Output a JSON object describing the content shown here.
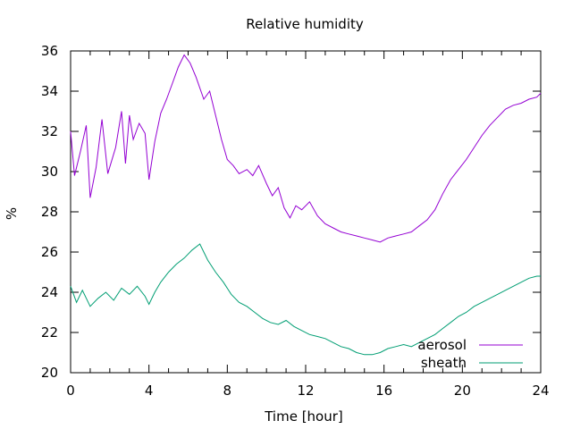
{
  "chart_data": {
    "type": "line",
    "title": "Relative humidity",
    "xlabel": "Time [hour]",
    "ylabel": "%",
    "xlim": [
      0,
      24
    ],
    "ylim": [
      20,
      36
    ],
    "xticks": [
      0,
      4,
      8,
      12,
      16,
      20,
      24
    ],
    "yticks": [
      20,
      22,
      24,
      26,
      28,
      30,
      32,
      34,
      36
    ],
    "grid": false,
    "legend_position": "bottom-right",
    "series": [
      {
        "name": "aerosol",
        "color": "#9400d3",
        "x": [
          0,
          0.2,
          0.5,
          0.8,
          1.0,
          1.3,
          1.6,
          1.9,
          2.3,
          2.6,
          2.8,
          3.0,
          3.2,
          3.5,
          3.8,
          4.0,
          4.3,
          4.6,
          4.9,
          5.2,
          5.5,
          5.8,
          6.1,
          6.4,
          6.8,
          7.1,
          7.4,
          7.7,
          8.0,
          8.3,
          8.6,
          9.0,
          9.3,
          9.6,
          10.0,
          10.3,
          10.6,
          10.9,
          11.2,
          11.5,
          11.8,
          12.2,
          12.6,
          13.0,
          13.4,
          13.8,
          14.2,
          14.6,
          15.0,
          15.4,
          15.8,
          16.2,
          16.6,
          17.0,
          17.4,
          17.8,
          18.2,
          18.6,
          19.0,
          19.4,
          19.8,
          20.2,
          20.6,
          21.0,
          21.4,
          21.8,
          22.2,
          22.6,
          23.0,
          23.4,
          23.8,
          24.0
        ],
        "y": [
          32.0,
          29.8,
          31.0,
          32.3,
          28.7,
          30.2,
          32.6,
          29.9,
          31.2,
          33.0,
          30.4,
          32.8,
          31.6,
          32.4,
          31.9,
          29.6,
          31.5,
          32.9,
          33.6,
          34.4,
          35.2,
          35.8,
          35.4,
          34.7,
          33.6,
          34.0,
          32.8,
          31.6,
          30.6,
          30.3,
          29.9,
          30.1,
          29.8,
          30.3,
          29.4,
          28.8,
          29.2,
          28.2,
          27.7,
          28.3,
          28.1,
          28.5,
          27.8,
          27.4,
          27.2,
          27.0,
          26.9,
          26.8,
          26.7,
          26.6,
          26.5,
          26.7,
          26.8,
          26.9,
          27.0,
          27.3,
          27.6,
          28.1,
          28.9,
          29.6,
          30.1,
          30.6,
          31.2,
          31.8,
          32.3,
          32.7,
          33.1,
          33.3,
          33.4,
          33.6,
          33.7,
          33.9
        ]
      },
      {
        "name": "sheath",
        "color": "#009e73",
        "x": [
          0,
          0.3,
          0.6,
          1.0,
          1.4,
          1.8,
          2.2,
          2.6,
          3.0,
          3.4,
          3.8,
          4.0,
          4.3,
          4.6,
          5.0,
          5.4,
          5.8,
          6.2,
          6.6,
          7.0,
          7.4,
          7.8,
          8.2,
          8.6,
          9.0,
          9.4,
          9.8,
          10.2,
          10.6,
          11.0,
          11.4,
          11.8,
          12.2,
          12.6,
          13.0,
          13.4,
          13.8,
          14.2,
          14.6,
          15.0,
          15.4,
          15.8,
          16.2,
          16.6,
          17.0,
          17.4,
          17.8,
          18.2,
          18.6,
          19.0,
          19.4,
          19.8,
          20.2,
          20.6,
          21.0,
          21.4,
          21.8,
          22.2,
          22.6,
          23.0,
          23.4,
          23.8,
          24.0
        ],
        "y": [
          24.3,
          23.5,
          24.1,
          23.3,
          23.7,
          24.0,
          23.6,
          24.2,
          23.9,
          24.3,
          23.8,
          23.4,
          24.0,
          24.5,
          25.0,
          25.4,
          25.7,
          26.1,
          26.4,
          25.6,
          25.0,
          24.5,
          23.9,
          23.5,
          23.3,
          23.0,
          22.7,
          22.5,
          22.4,
          22.6,
          22.3,
          22.1,
          21.9,
          21.8,
          21.7,
          21.5,
          21.3,
          21.2,
          21.0,
          20.9,
          20.9,
          21.0,
          21.2,
          21.3,
          21.4,
          21.3,
          21.5,
          21.7,
          21.9,
          22.2,
          22.5,
          22.8,
          23.0,
          23.3,
          23.5,
          23.7,
          23.9,
          24.1,
          24.3,
          24.5,
          24.7,
          24.8,
          24.8
        ]
      }
    ]
  }
}
